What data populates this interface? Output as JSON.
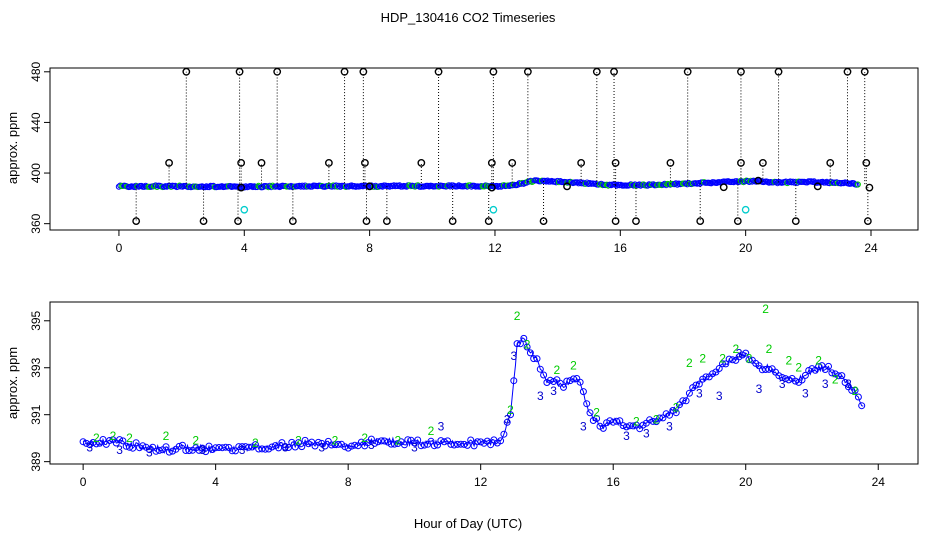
{
  "chart_data": [
    {
      "type": "scatter",
      "title": "HDP_130416  CO2 Timeseries",
      "ylabel": "approx. ppm",
      "xlabel": "",
      "xlim": [
        -2.2,
        25.5
      ],
      "ylim": [
        355,
        483
      ],
      "xticks": [
        0,
        4,
        8,
        12,
        16,
        20,
        24
      ],
      "yticks": [
        360,
        400,
        440,
        480
      ],
      "grid": false,
      "colors": {
        "base": "#0000ff",
        "flag2": "#00cc00",
        "flagged": "#000000",
        "cyan": "#00cccc"
      },
      "series": [
        {
          "style": "band",
          "x": [
            0,
            0.5,
            1,
            1.5,
            2,
            2.5,
            3,
            3.5,
            4,
            5,
            6,
            7,
            8,
            9,
            10,
            11,
            12,
            12.5,
            13,
            13.3,
            14,
            14.5,
            15,
            15.5,
            16,
            17,
            17.5,
            18,
            18.5,
            19,
            19.5,
            20,
            20.5,
            21,
            22,
            23,
            23.6
          ],
          "y": [
            389.5,
            389.5,
            389.6,
            389.4,
            389.5,
            389.2,
            389.3,
            389.4,
            389.2,
            389.4,
            389.6,
            389.7,
            389.6,
            389.8,
            389.7,
            389.8,
            389.7,
            389.9,
            392.5,
            394.0,
            393.2,
            392.6,
            391.8,
            390.7,
            390.4,
            390.6,
            391.0,
            391.6,
            392.0,
            392.5,
            393.2,
            393.5,
            393.3,
            392.6,
            393.0,
            392.4,
            391.2
          ]
        },
        {
          "style": "spikes-high",
          "x": [
            2.15,
            3.85,
            5.05,
            7.2,
            7.8,
            10.2,
            11.95,
            13.05,
            15.25,
            15.8,
            18.15,
            19.85,
            21.05,
            23.25,
            23.8
          ],
          "y": [
            480,
            480,
            480,
            480,
            480,
            480,
            480,
            480,
            480,
            480,
            480,
            480,
            480,
            480,
            480
          ]
        },
        {
          "style": "spikes-mid",
          "x": [
            1.6,
            3.9,
            4.55,
            6.7,
            7.85,
            9.65,
            11.9,
            12.55,
            14.75,
            15.85,
            17.6,
            19.85,
            20.55,
            22.7,
            23.85
          ],
          "y": [
            408,
            408,
            408,
            408,
            408,
            408,
            408,
            408,
            408,
            408,
            408,
            408,
            408,
            408,
            408
          ]
        },
        {
          "style": "spikes-low",
          "x": [
            0.55,
            2.7,
            3.8,
            5.55,
            7.9,
            8.55,
            10.65,
            11.8,
            13.55,
            15.85,
            16.5,
            18.55,
            19.75,
            21.6,
            23.9
          ],
          "y": [
            362,
            362,
            362,
            362,
            362,
            362,
            362,
            362,
            362,
            362,
            362,
            362,
            362,
            362,
            362
          ]
        },
        {
          "style": "flag-low",
          "x": [
            3.9,
            11.9,
            14.3,
            19.3,
            22.3,
            23.95,
            20.4,
            8.0
          ],
          "y": [
            388.5,
            388.5,
            389.5,
            388.8,
            389.5,
            388.5,
            394.0,
            389.5
          ]
        },
        {
          "style": "cyan",
          "x": [
            4.0,
            11.95,
            20.0
          ],
          "y": [
            371,
            371,
            371
          ]
        }
      ]
    },
    {
      "type": "scatter",
      "title": "",
      "ylabel": "approx. ppm",
      "xlabel": "Hour of Day (UTC)",
      "xlim": [
        -1.0,
        25.2
      ],
      "ylim": [
        388.9,
        395.8
      ],
      "xticks": [
        0,
        4,
        8,
        12,
        16,
        20,
        24
      ],
      "yticks": [
        389,
        391,
        393,
        395
      ],
      "grid": false,
      "colors": {
        "base": "#0000ff",
        "flag2": "#00cc00",
        "flag3": "#0000cc"
      },
      "labels": {
        "flag2": "2",
        "flag3": "3"
      },
      "series": [
        {
          "style": "line",
          "x": [
            0,
            0.5,
            1,
            1.5,
            2,
            2.5,
            3,
            3.5,
            4,
            5,
            6,
            7,
            8,
            9,
            10,
            11,
            12,
            12.6,
            12.9,
            13.1,
            13.3,
            13.6,
            14,
            14.5,
            15,
            15.3,
            15.7,
            16,
            16.5,
            17,
            17.5,
            18,
            18.5,
            19,
            19.5,
            20,
            20.4,
            20.7,
            21,
            21.5,
            22,
            22.5,
            23,
            23.6
          ],
          "y": [
            389.9,
            389.8,
            389.9,
            389.7,
            389.6,
            389.5,
            389.6,
            389.6,
            389.5,
            389.6,
            389.7,
            389.8,
            389.7,
            389.9,
            389.8,
            389.8,
            389.8,
            389.9,
            391.0,
            394.0,
            394.2,
            393.5,
            392.5,
            392.3,
            392.5,
            391.0,
            390.4,
            390.8,
            390.4,
            390.6,
            390.9,
            391.3,
            392.3,
            392.7,
            393.3,
            393.6,
            393.0,
            393.0,
            392.6,
            392.4,
            392.9,
            393.0,
            392.5,
            391.3
          ]
        },
        {
          "style": "flag2",
          "x": [
            0.4,
            0.9,
            1.4,
            2.5,
            3.4,
            5.2,
            6.5,
            7.6,
            8.5,
            9.5,
            10.5,
            12.9,
            13.1,
            13.4,
            14.3,
            14.8,
            15.5,
            16.7,
            17.3,
            17.9,
            18.3,
            18.7,
            19.3,
            19.7,
            20.1,
            20.6,
            20.7,
            21.3,
            21.6,
            22.2,
            22.7,
            23.3
          ],
          "y": [
            390.0,
            390.1,
            390.0,
            390.1,
            389.9,
            389.8,
            389.9,
            389.9,
            390.0,
            389.9,
            390.3,
            391.2,
            395.2,
            394.0,
            392.9,
            393.1,
            391.1,
            390.7,
            390.8,
            391.3,
            393.2,
            393.4,
            393.4,
            393.8,
            393.4,
            395.5,
            393.8,
            393.3,
            393.0,
            393.3,
            392.5,
            392.0
          ]
        },
        {
          "style": "flag3",
          "x": [
            0.2,
            1.1,
            2.0,
            3.6,
            4.8,
            6.1,
            7.2,
            8.7,
            10.0,
            10.8,
            12.8,
            13.0,
            13.8,
            14.2,
            15.1,
            16.4,
            17.0,
            17.7,
            18.6,
            19.2,
            19.8,
            20.4,
            21.1,
            21.8,
            22.4,
            23.1
          ],
          "y": [
            389.6,
            389.5,
            389.4,
            389.5,
            389.5,
            389.6,
            389.6,
            389.7,
            389.6,
            390.5,
            390.8,
            393.5,
            391.8,
            392.0,
            390.5,
            390.1,
            390.2,
            390.5,
            391.9,
            391.8,
            393.6,
            392.1,
            392.3,
            391.9,
            392.3,
            392.3
          ]
        }
      ]
    }
  ]
}
